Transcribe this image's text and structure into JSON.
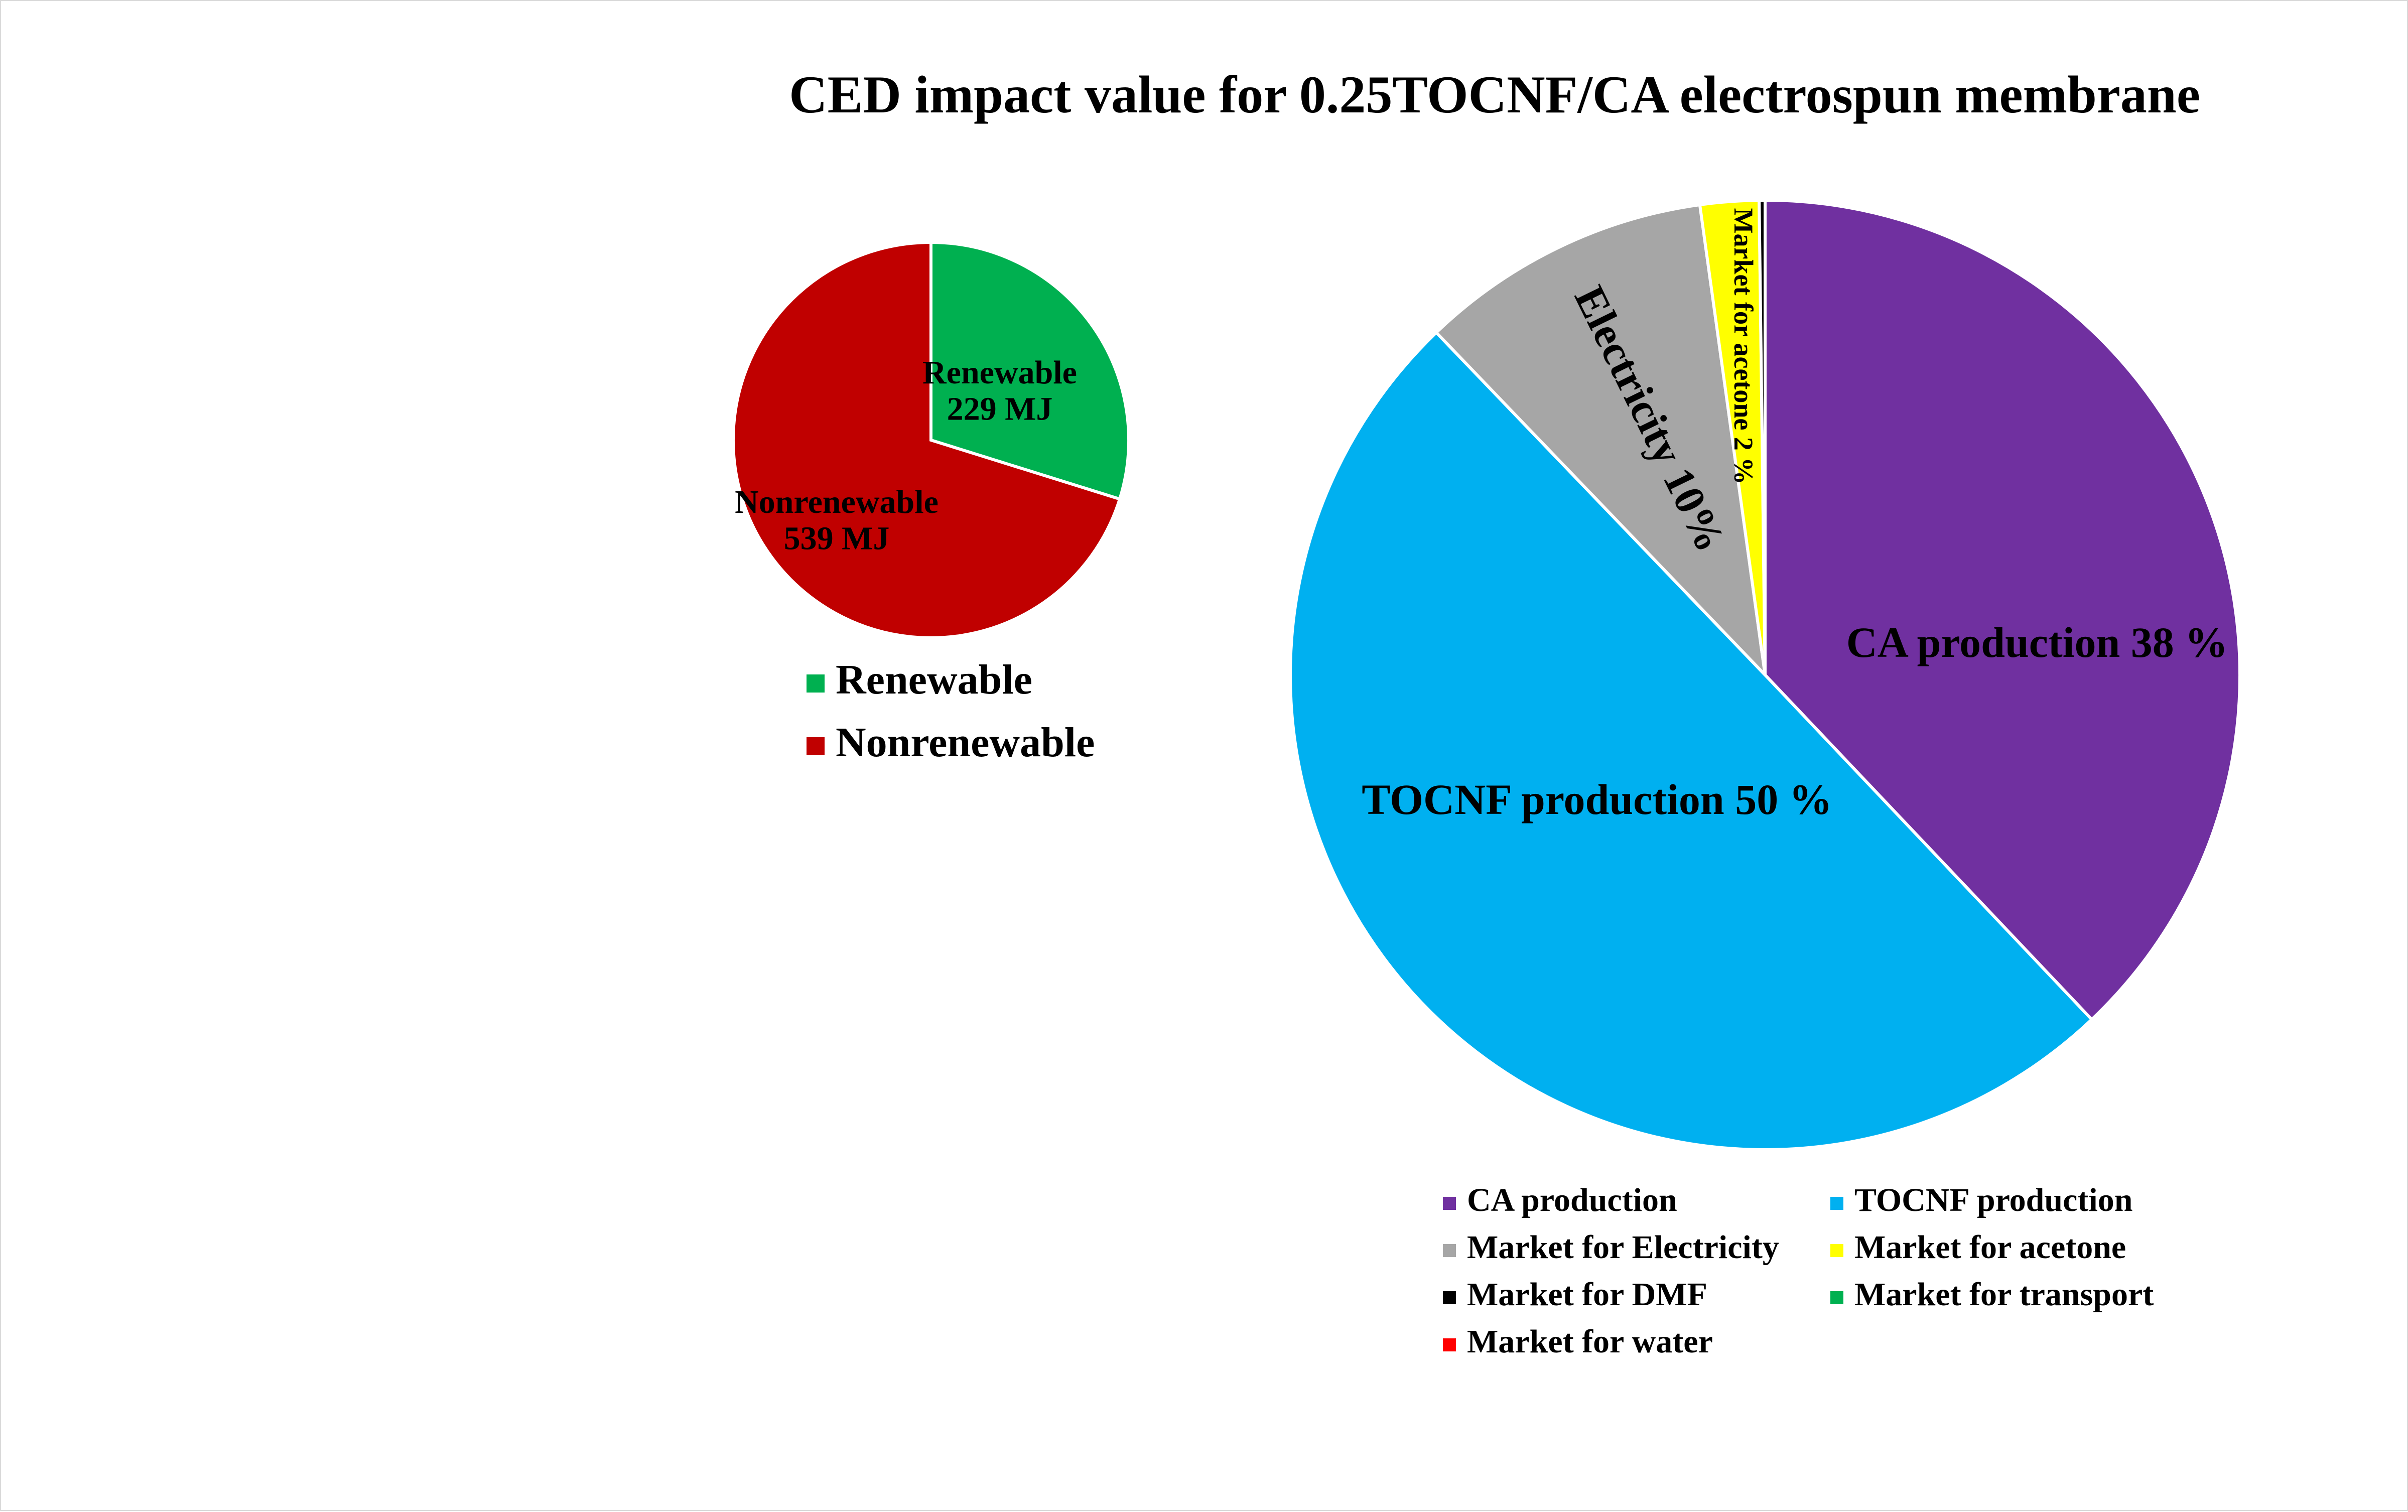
{
  "chart_data": [
    {
      "type": "pie",
      "title": "CED impact value for 0.25TOCNF/CA electrospun membrane",
      "unit": "MJ",
      "slices": [
        {
          "name": "Renewable",
          "value": 229,
          "color": "#00b050",
          "label_lines": [
            "Renewable",
            "229 MJ"
          ]
        },
        {
          "name": "Nonrenewable",
          "value": 539,
          "color": "#c00000",
          "label_lines": [
            "Nonrenewable",
            "539 MJ"
          ]
        }
      ],
      "legend": {
        "placement": "bottom",
        "entries": [
          "Renewable",
          "Nonrenewable"
        ]
      }
    },
    {
      "type": "pie",
      "unit": "%",
      "slices": [
        {
          "name": "CA production",
          "value": 38,
          "color": "#7030a0",
          "label": "CA production 38 %"
        },
        {
          "name": "TOCNF production",
          "value": 50,
          "color": "#00b0f0",
          "label": "TOCNF production 50 %"
        },
        {
          "name": "Market for Electricity",
          "value": 10,
          "color": "#a6a6a6",
          "label": "Electricity 10%"
        },
        {
          "name": "Market for acetone",
          "value": 2,
          "color": "#ffff00",
          "label": "Market for acetone 2 %"
        },
        {
          "name": "Market for DMF",
          "value": 0.2,
          "color": "#000000",
          "label": ""
        },
        {
          "name": "Market for transport",
          "value": 0,
          "color": "#00b050",
          "label": ""
        },
        {
          "name": "Market for water",
          "value": 0,
          "color": "#ff0000",
          "label": ""
        }
      ],
      "legend": {
        "placement": "bottom",
        "entries": [
          "CA production",
          "TOCNF production",
          "Market for Electricity",
          "Market for acetone",
          "Market for DMF",
          "Market for transport",
          "Market for water"
        ]
      }
    }
  ]
}
